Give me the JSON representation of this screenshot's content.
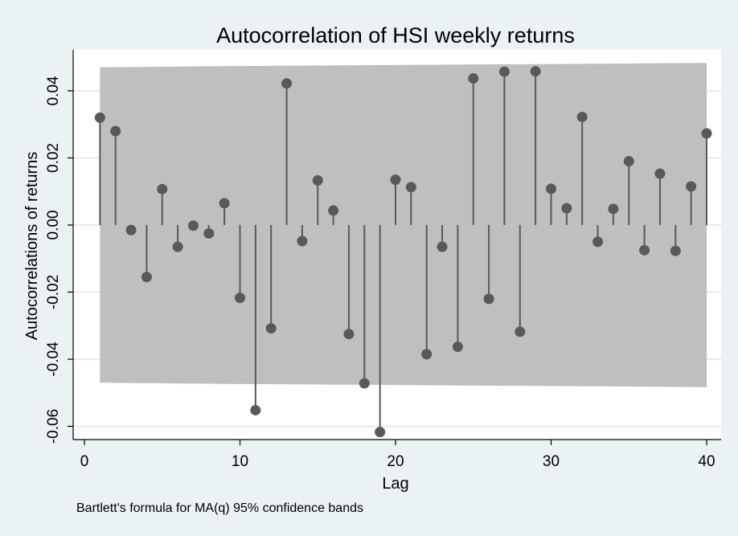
{
  "chart_data": {
    "type": "stem",
    "title": "Autocorrelation of HSI weekly returns",
    "xlabel": "Lag",
    "ylabel": "Autocorrelations of returns",
    "note": "Bartlett's formula for MA(q) 95% confidence bands",
    "xlim": [
      0,
      40
    ],
    "ylim": [
      -0.065,
      0.052
    ],
    "x_ticks": [
      0,
      10,
      20,
      30,
      40
    ],
    "x_tick_labels": [
      "0",
      "10",
      "20",
      "30",
      "40"
    ],
    "y_ticks": [
      -0.06,
      -0.04,
      -0.02,
      0.0,
      0.02,
      0.04
    ],
    "y_tick_labels": [
      "-0.06",
      "-0.04",
      "-0.02",
      "0.00",
      "0.02",
      "0.04"
    ],
    "grid": true,
    "colors": {
      "outer_background": "#eaf2f3",
      "plot_background": "#ffffff",
      "band": "#bfbfbf",
      "marker": "#595959",
      "gridline": "#e4e4e4"
    },
    "lags": [
      1,
      2,
      3,
      4,
      5,
      6,
      7,
      8,
      9,
      10,
      11,
      12,
      13,
      14,
      15,
      16,
      17,
      18,
      19,
      20,
      21,
      22,
      23,
      24,
      25,
      26,
      27,
      28,
      29,
      30,
      31,
      32,
      33,
      34,
      35,
      36,
      37,
      38,
      39,
      40
    ],
    "values": [
      0.032,
      0.028,
      -0.0015,
      -0.0155,
      0.0107,
      -0.0065,
      -0.0002,
      -0.0025,
      0.0065,
      -0.0217,
      -0.0552,
      -0.0308,
      0.0422,
      -0.0048,
      0.0133,
      0.0043,
      -0.0325,
      -0.0472,
      -0.0617,
      0.0135,
      0.0113,
      -0.0385,
      -0.0065,
      -0.0363,
      0.0437,
      -0.022,
      0.0457,
      -0.0318,
      0.0458,
      0.0108,
      0.005,
      0.0322,
      -0.005,
      0.0048,
      0.019,
      -0.0075,
      0.0153,
      -0.0077,
      0.0115,
      0.0273
    ],
    "confidence_band": {
      "lags": [
        1,
        10,
        20,
        30,
        40
      ],
      "upper": [
        0.047,
        0.0474,
        0.0477,
        0.048,
        0.0483
      ],
      "lower": [
        -0.047,
        -0.0474,
        -0.0477,
        -0.048,
        -0.0483
      ]
    }
  }
}
